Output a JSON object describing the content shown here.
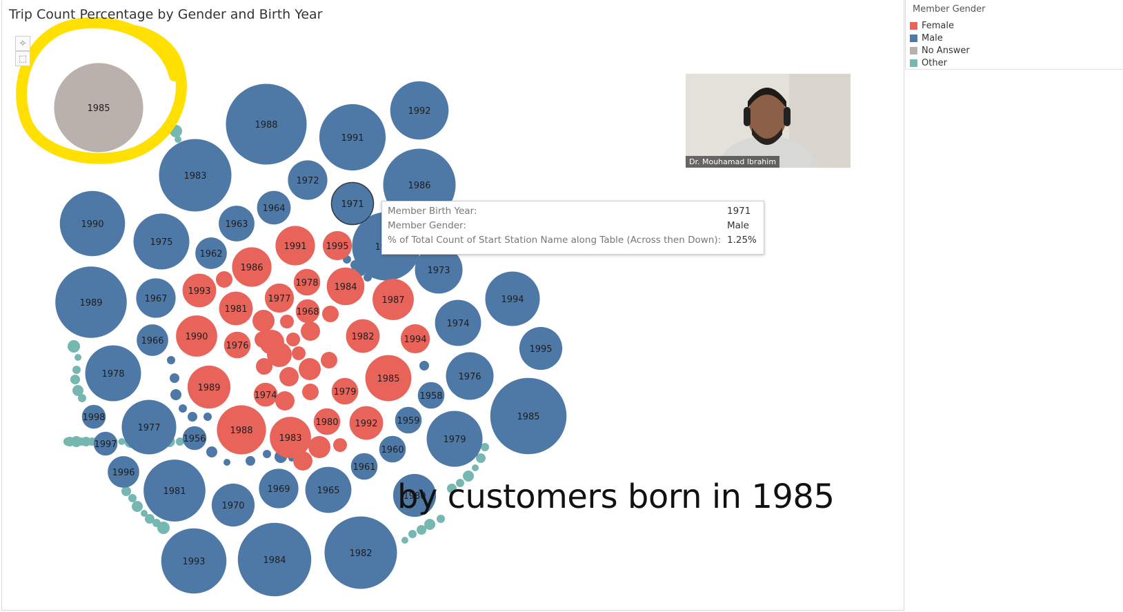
{
  "title": "Trip Count Percentage by Gender and Birth Year",
  "legend": {
    "title": "Member Gender",
    "items": [
      {
        "label": "Female",
        "color": "#e8645a"
      },
      {
        "label": "Male",
        "color": "#4e79a7"
      },
      {
        "label": "No Answer",
        "color": "#bab0ac"
      },
      {
        "label": "Other",
        "color": "#76b7b2"
      }
    ]
  },
  "toolbar": {
    "pin_icon": "pin-icon",
    "select_icon": "marquee-select-icon"
  },
  "tooltip": {
    "rows": [
      {
        "key": "Member Birth Year:",
        "value": "1971"
      },
      {
        "key": "Member Gender:",
        "value": "Male"
      },
      {
        "key": "% of Total Count of Start Station Name along Table (Across then Down):",
        "value": "1.25%"
      }
    ]
  },
  "presenter": {
    "name": "Dr. Mouhamad Ibrahim"
  },
  "caption": "by customers born in 1985",
  "chart_data": {
    "type": "packed-bubble",
    "measure": "% of Total Count of Start Station Name",
    "legend_placement": "top-right",
    "highlighted": {
      "year": "1985",
      "gender": "No Answer"
    },
    "bubbles": [
      {
        "year": "1985",
        "gender": "No Answer",
        "value": 5.6
      },
      {
        "year": "1988",
        "gender": "Male",
        "value": 4.6
      },
      {
        "year": "1991",
        "gender": "Male",
        "value": 3.1
      },
      {
        "year": "1992",
        "gender": "Male",
        "value": 2.4
      },
      {
        "year": "1986",
        "gender": "Male",
        "value": 3.7
      },
      {
        "year": "1983",
        "gender": "Male",
        "value": 3.7
      },
      {
        "year": "1972",
        "gender": "Male",
        "value": 1.1
      },
      {
        "year": "1971",
        "gender": "Male",
        "value": 1.25
      },
      {
        "year": "1964",
        "gender": "Male",
        "value": 0.8
      },
      {
        "year": "1963",
        "gender": "Male",
        "value": 0.9
      },
      {
        "year": "1990",
        "gender": "Male",
        "value": 3.0
      },
      {
        "year": "1975",
        "gender": "Male",
        "value": 2.2
      },
      {
        "year": "1962",
        "gender": "Male",
        "value": 0.7
      },
      {
        "year": "1989",
        "gender": "Male",
        "value": 3.6
      },
      {
        "year": "1967",
        "gender": "Male",
        "value": 1.1
      },
      {
        "year": "1966",
        "gender": "Male",
        "value": 0.7
      },
      {
        "year": "1978",
        "gender": "Male",
        "value": 2.2
      },
      {
        "year": "1998",
        "gender": "Male",
        "value": 0.4
      },
      {
        "year": "1977",
        "gender": "Male",
        "value": 2.1
      },
      {
        "year": "1997",
        "gender": "Male",
        "value": 0.4
      },
      {
        "year": "1956",
        "gender": "Male",
        "value": 0.4
      },
      {
        "year": "1996",
        "gender": "Male",
        "value": 0.7
      },
      {
        "year": "1981",
        "gender": "Male",
        "value": 2.7
      },
      {
        "year": "1970",
        "gender": "Male",
        "value": 1.3
      },
      {
        "year": "1969",
        "gender": "Male",
        "value": 1.1
      },
      {
        "year": "1965",
        "gender": "Male",
        "value": 1.5
      },
      {
        "year": "1993",
        "gender": "Male",
        "value": 3.0
      },
      {
        "year": "1984",
        "gender": "Male",
        "value": 3.8
      },
      {
        "year": "1982",
        "gender": "Male",
        "value": 3.7
      },
      {
        "year": "1961",
        "gender": "Male",
        "value": 0.5
      },
      {
        "year": "1960",
        "gender": "Male",
        "value": 0.5
      },
      {
        "year": "1959",
        "gender": "Male",
        "value": 0.5
      },
      {
        "year": "1958",
        "gender": "Male",
        "value": 0.5
      },
      {
        "year": "1979",
        "gender": "Male",
        "value": 2.2
      },
      {
        "year": "1976",
        "gender": "Male",
        "value": 1.6
      },
      {
        "year": "1985",
        "gender": "Male",
        "value": 4.1
      },
      {
        "year": "1995",
        "gender": "Male",
        "value": 1.3
      },
      {
        "year": "1974",
        "gender": "Male",
        "value": 1.5
      },
      {
        "year": "1994",
        "gender": "Male",
        "value": 2.1
      },
      {
        "year": "1973",
        "gender": "Male",
        "value": 1.6
      },
      {
        "year": "1987",
        "gender": "Male",
        "value": 3.3
      },
      {
        "year": "1980",
        "gender": "Male",
        "value": 1.3
      },
      {
        "year": "1991",
        "gender": "Female",
        "value": 1.1
      },
      {
        "year": "1995",
        "gender": "Female",
        "value": 0.6
      },
      {
        "year": "1986",
        "gender": "Female",
        "value": 1.1
      },
      {
        "year": "1978",
        "gender": "Female",
        "value": 0.5
      },
      {
        "year": "1984",
        "gender": "Female",
        "value": 1.0
      },
      {
        "year": "1993",
        "gender": "Female",
        "value": 0.8
      },
      {
        "year": "1977",
        "gender": "Female",
        "value": 0.6
      },
      {
        "year": "1981",
        "gender": "Female",
        "value": 0.8
      },
      {
        "year": "1968",
        "gender": "Female",
        "value": 0.4
      },
      {
        "year": "1987",
        "gender": "Female",
        "value": 1.2
      },
      {
        "year": "1990",
        "gender": "Female",
        "value": 1.2
      },
      {
        "year": "1976",
        "gender": "Female",
        "value": 0.5
      },
      {
        "year": "1982",
        "gender": "Female",
        "value": 0.8
      },
      {
        "year": "1994",
        "gender": "Female",
        "value": 0.6
      },
      {
        "year": "1989",
        "gender": "Female",
        "value": 1.3
      },
      {
        "year": "1985",
        "gender": "Female",
        "value": 1.5
      },
      {
        "year": "1974",
        "gender": "Female",
        "value": 0.4
      },
      {
        "year": "1979",
        "gender": "Female",
        "value": 0.5
      },
      {
        "year": "1988",
        "gender": "Female",
        "value": 1.7
      },
      {
        "year": "1983",
        "gender": "Female",
        "value": 1.2
      },
      {
        "year": "1980",
        "gender": "Female",
        "value": 0.5
      },
      {
        "year": "1992",
        "gender": "Female",
        "value": 0.8
      }
    ]
  }
}
